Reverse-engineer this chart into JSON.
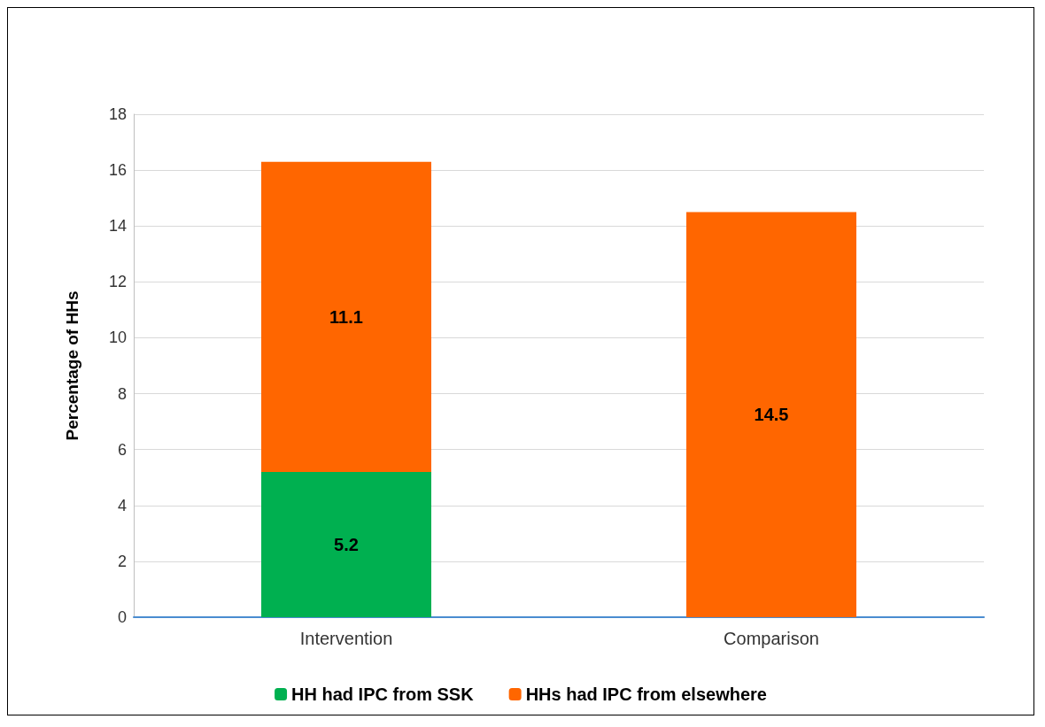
{
  "chart_data": {
    "type": "bar",
    "stacked": true,
    "ylabel": "Percentage of HHs",
    "categories": [
      "Intervention",
      "Comparison"
    ],
    "series": [
      {
        "name": "HH had IPC from SSK",
        "color": "#00b050",
        "values": [
          5.2,
          null
        ]
      },
      {
        "name": "HHs had IPC from elsewhere",
        "color": "#ff6600",
        "values": [
          11.1,
          14.5
        ]
      }
    ],
    "ylim": [
      0,
      18
    ],
    "yticks": [
      0,
      2,
      4,
      6,
      8,
      10,
      12,
      14,
      16,
      18
    ],
    "grid": "y",
    "legend": "bottom",
    "data_labels": true
  }
}
